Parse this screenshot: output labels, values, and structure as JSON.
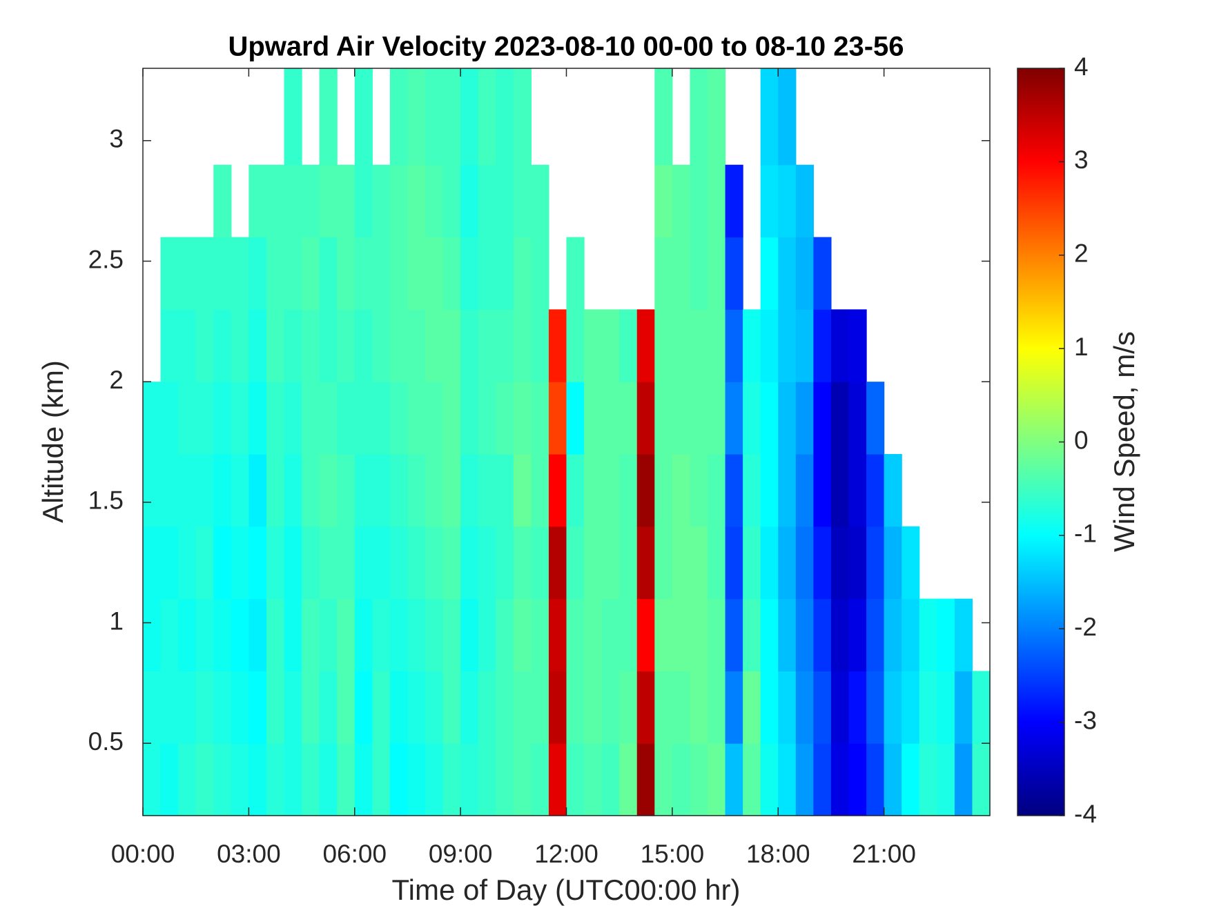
{
  "chart_data": {
    "type": "heatmap",
    "title": "Upward Air Velocity 2023-08-10 00-00 to 08-10 23-56",
    "x_label": "Time of Day (UTC00:00 hr)",
    "y_label": "Altitude (km)",
    "colorbar_label": "Wind Speed, m/s",
    "colormap": "jet",
    "clim": [
      -4,
      4
    ],
    "cticks": [
      -4,
      -3,
      -2,
      -1,
      0,
      1,
      2,
      3,
      4
    ],
    "xlim": [
      0,
      24
    ],
    "ylim": [
      0.2,
      3.3
    ],
    "xticks": [
      {
        "value": 0,
        "label": "00:00"
      },
      {
        "value": 3,
        "label": "03:00"
      },
      {
        "value": 6,
        "label": "06:00"
      },
      {
        "value": 9,
        "label": "09:00"
      },
      {
        "value": 12,
        "label": "12:00"
      },
      {
        "value": 15,
        "label": "15:00"
      },
      {
        "value": 18,
        "label": "18:00"
      },
      {
        "value": 21,
        "label": "21:00"
      }
    ],
    "yticks": [
      0.5,
      1,
      1.5,
      2,
      2.5,
      3
    ],
    "xbins": [
      0,
      0.5,
      1,
      1.5,
      2,
      2.5,
      3,
      3.5,
      4,
      4.5,
      5,
      5.5,
      6,
      6.5,
      7,
      7.5,
      8,
      8.5,
      9,
      9.5,
      10,
      10.5,
      11,
      11.5,
      12,
      12.5,
      13,
      13.5,
      14,
      14.5,
      15,
      15.5,
      16,
      16.5,
      17,
      17.5,
      18,
      18.5,
      19,
      19.5,
      20,
      20.5,
      21,
      21.5,
      22,
      22.5,
      23,
      23.5,
      24
    ],
    "ybins": [
      0.2,
      0.5,
      0.8,
      1.1,
      1.4,
      1.7,
      2.0,
      2.3,
      2.6,
      2.9,
      3.3
    ],
    "values": [
      [
        -0.8,
        -0.8,
        -0.9,
        -0.9,
        -0.8,
        -0.8,
        null,
        null,
        null,
        null
      ],
      [
        -0.9,
        -0.8,
        -0.8,
        -0.9,
        -0.8,
        -0.8,
        -0.7,
        -0.6,
        null,
        null
      ],
      [
        -0.7,
        -0.8,
        -0.9,
        -0.8,
        -0.8,
        -0.7,
        -0.7,
        -0.6,
        null,
        null
      ],
      [
        -0.6,
        -0.7,
        -0.8,
        -0.7,
        -0.8,
        -0.7,
        -0.6,
        -0.6,
        null,
        null
      ],
      [
        -0.7,
        -0.8,
        -0.9,
        -1.0,
        -0.9,
        -0.8,
        -0.7,
        -0.6,
        -0.5,
        null
      ],
      [
        -0.8,
        -0.9,
        -1.0,
        -0.9,
        -0.8,
        -0.7,
        -0.6,
        -0.6,
        null,
        null
      ],
      [
        -0.9,
        -1.0,
        -1.1,
        -1.0,
        -1.1,
        -0.9,
        -0.8,
        -0.7,
        -0.5,
        null
      ],
      [
        -0.7,
        -0.6,
        -0.6,
        -0.7,
        -0.6,
        -0.6,
        -0.5,
        -0.5,
        -0.5,
        null
      ],
      [
        -0.8,
        -0.8,
        -0.9,
        -0.9,
        -0.8,
        -0.7,
        -0.6,
        -0.5,
        -0.5,
        -0.6
      ],
      [
        -0.6,
        -0.5,
        -0.5,
        -0.6,
        -0.5,
        -0.5,
        -0.5,
        -0.4,
        -0.5,
        null
      ],
      [
        -0.8,
        -0.7,
        -0.6,
        -0.5,
        -0.4,
        -0.5,
        -0.6,
        -0.6,
        -0.4,
        -0.5
      ],
      [
        -0.5,
        -0.4,
        -0.4,
        -0.5,
        -0.5,
        -0.6,
        -0.5,
        -0.4,
        -0.4,
        null
      ],
      [
        -0.9,
        -1.0,
        -0.9,
        -0.8,
        -0.7,
        -0.6,
        -0.6,
        -0.5,
        -0.6,
        -0.6
      ],
      [
        -0.6,
        -0.6,
        -0.7,
        -0.8,
        -0.7,
        -0.6,
        -0.5,
        -0.5,
        -0.5,
        null
      ],
      [
        -1.0,
        -0.9,
        -0.8,
        -0.7,
        -0.6,
        -0.5,
        -0.4,
        -0.4,
        -0.4,
        -0.5
      ],
      [
        -0.9,
        -0.8,
        -0.7,
        -0.6,
        -0.5,
        -0.4,
        -0.4,
        -0.3,
        -0.3,
        -0.4
      ],
      [
        -0.8,
        -0.7,
        -0.6,
        -0.5,
        -0.4,
        -0.4,
        -0.3,
        -0.3,
        -0.4,
        -0.5
      ],
      [
        -0.6,
        -0.5,
        -0.5,
        -0.4,
        -0.3,
        -0.3,
        -0.3,
        -0.4,
        -0.5,
        -0.5
      ],
      [
        -0.7,
        -0.8,
        -0.9,
        -0.8,
        -0.7,
        -0.6,
        -0.6,
        -0.7,
        -0.8,
        -0.7
      ],
      [
        -0.6,
        -0.6,
        -0.7,
        -0.7,
        -0.6,
        -0.5,
        -0.5,
        -0.6,
        -0.6,
        -0.5
      ],
      [
        -0.5,
        -0.5,
        -0.5,
        -0.6,
        -0.6,
        -0.4,
        -0.5,
        -0.6,
        -0.6,
        -0.6
      ],
      [
        -0.4,
        -0.4,
        -0.3,
        -0.4,
        -0.2,
        -0.3,
        -0.4,
        -0.4,
        -0.5,
        -0.5
      ],
      [
        -0.5,
        -0.4,
        -0.4,
        -0.5,
        -0.4,
        -0.4,
        -0.5,
        -0.5,
        -0.5,
        null
      ],
      [
        3.2,
        3.5,
        3.4,
        3.6,
        3.0,
        2.5,
        2.8,
        null,
        null,
        null
      ],
      [
        -0.5,
        -0.4,
        -0.4,
        -0.5,
        -0.6,
        -1.0,
        -0.5,
        -0.5,
        null,
        null
      ],
      [
        -0.4,
        -0.3,
        -0.3,
        -0.3,
        -0.3,
        -0.3,
        -0.3,
        null,
        null,
        null
      ],
      [
        -0.5,
        -0.4,
        -0.4,
        -0.3,
        -0.3,
        -0.3,
        -0.3,
        null,
        null,
        null
      ],
      [
        -0.2,
        -0.3,
        -0.4,
        -0.4,
        -0.4,
        -0.3,
        -0.5,
        null,
        null,
        null
      ],
      [
        3.8,
        3.5,
        3.0,
        3.6,
        3.8,
        3.5,
        3.2,
        null,
        null,
        null
      ],
      [
        -0.3,
        -0.3,
        -0.2,
        -0.3,
        -0.3,
        -0.3,
        -0.3,
        -0.3,
        -0.2,
        -0.4
      ],
      [
        -0.4,
        -0.3,
        -0.2,
        -0.2,
        -0.2,
        -0.3,
        -0.3,
        -0.3,
        -0.3,
        null
      ],
      [
        -0.3,
        -0.2,
        -0.2,
        -0.2,
        -0.3,
        -0.3,
        -0.3,
        -0.4,
        -0.4,
        -0.4
      ],
      [
        -0.2,
        -0.3,
        -0.3,
        -0.4,
        -0.4,
        -0.3,
        -0.3,
        -0.3,
        -0.3,
        -0.3
      ],
      [
        -1.5,
        -2.0,
        -2.3,
        -2.5,
        -2.4,
        -2.0,
        -2.2,
        -2.5,
        -2.8,
        null
      ],
      [
        -0.3,
        -0.2,
        -0.5,
        -0.6,
        -0.7,
        -0.8,
        -0.9,
        null,
        null,
        null
      ],
      [
        -0.9,
        -1.0,
        -1.0,
        -1.1,
        -1.0,
        -1.0,
        -1.1,
        -1.0,
        -1.2,
        -1.3
      ],
      [
        -1.2,
        -1.3,
        -1.5,
        -1.6,
        -1.5,
        -1.5,
        -1.4,
        -1.4,
        -1.3,
        -1.5
      ],
      [
        -1.8,
        -1.9,
        -2.0,
        -2.1,
        -2.0,
        -1.8,
        -1.5,
        -1.6,
        -1.5,
        null
      ],
      [
        -2.5,
        -2.4,
        -2.6,
        -2.8,
        -3.0,
        -3.0,
        -2.8,
        -2.5,
        null,
        null
      ],
      [
        -3.2,
        -3.3,
        -3.4,
        -3.5,
        -3.6,
        -3.6,
        -3.3,
        null,
        null,
        null
      ],
      [
        -3.0,
        -2.9,
        -3.2,
        -3.4,
        -3.3,
        -3.3,
        -3.2,
        null,
        null,
        null
      ],
      [
        -2.5,
        -2.3,
        -2.4,
        -2.5,
        -2.6,
        -2.2,
        null,
        null,
        null,
        null
      ],
      [
        -1.5,
        -1.4,
        -1.5,
        -1.6,
        -1.4,
        null,
        null,
        null,
        null,
        null
      ],
      [
        -1.0,
        -1.2,
        -1.3,
        -1.2,
        null,
        null,
        null,
        null,
        null,
        null
      ],
      [
        -0.7,
        -0.8,
        -0.9,
        null,
        null,
        null,
        null,
        null,
        null,
        null
      ],
      [
        -0.8,
        -0.9,
        -1.0,
        null,
        null,
        null,
        null,
        null,
        null,
        null
      ],
      [
        -1.8,
        -1.6,
        -1.3,
        null,
        null,
        null,
        null,
        null,
        null,
        null
      ],
      [
        -0.6,
        -0.7,
        null,
        null,
        null,
        null,
        null,
        null,
        null,
        null
      ]
    ]
  }
}
